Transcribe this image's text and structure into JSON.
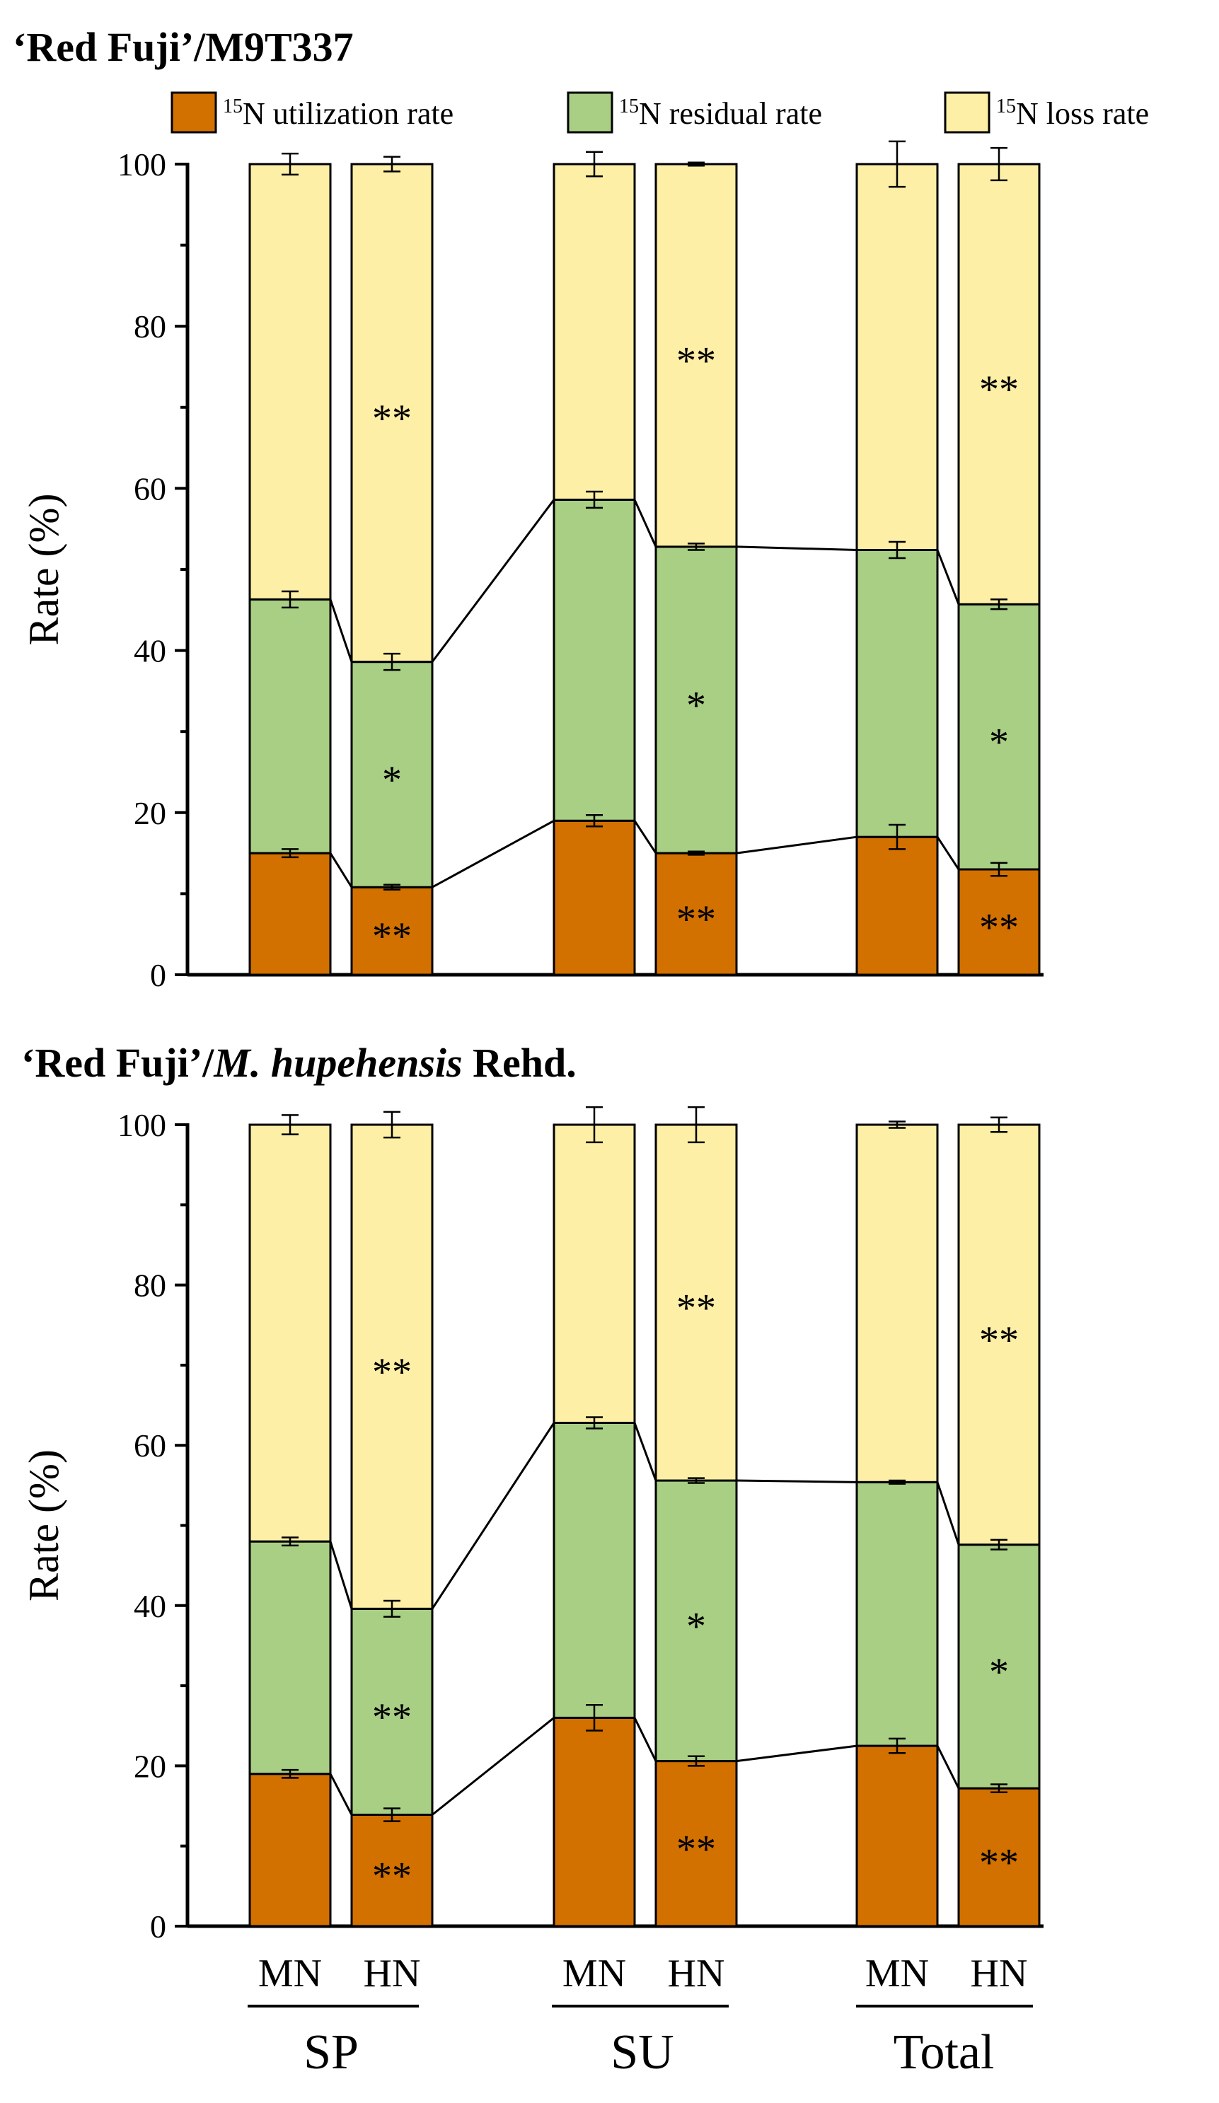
{
  "legend": [
    {
      "sup": "15",
      "label": "N utilization rate",
      "color": "#d27100"
    },
    {
      "sup": "15",
      "label": "N residual rate",
      "color": "#a9cf85"
    },
    {
      "sup": "15",
      "label": "N loss rate",
      "color": "#fdefa6"
    }
  ],
  "panels": [
    {
      "title": "‘Red Fuji’/M9T337"
    },
    {
      "title_part1": "‘Red Fuji’/",
      "title_part2": "M. hupehensis",
      "title_part3": " Rehd."
    }
  ],
  "x_axis": {
    "treatments": [
      "MN",
      "HN"
    ],
    "groups": [
      "SP",
      "SU",
      "Total"
    ]
  },
  "chart_data": [
    {
      "type": "bar",
      "stacked": true,
      "title": "‘Red Fuji’/M9T337",
      "ylabel": "Rate (%)",
      "ylim": [
        0,
        100
      ],
      "yticks": [
        0,
        20,
        40,
        60,
        80,
        100
      ],
      "categories": [
        "SP MN",
        "SP HN",
        "SU MN",
        "SU HN",
        "Total MN",
        "Total HN"
      ],
      "series": [
        {
          "name": "15N utilization rate",
          "color": "#d27100",
          "values": [
            15.0,
            10.8,
            19.0,
            15.0,
            17.0,
            13.0
          ],
          "errors": [
            0.5,
            0.3,
            0.7,
            0.2,
            1.5,
            0.8
          ],
          "significance": [
            "",
            "**",
            "",
            "**",
            "",
            "**"
          ]
        },
        {
          "name": "15N residual rate",
          "color": "#a9cf85",
          "values": [
            31.3,
            27.8,
            39.6,
            37.8,
            35.4,
            32.7
          ],
          "errors": [
            1.0,
            1.0,
            1.0,
            0.4,
            1.0,
            0.6
          ],
          "significance": [
            "",
            "*",
            "",
            "*",
            "",
            "*"
          ]
        },
        {
          "name": "15N loss rate",
          "color": "#fdefa6",
          "values": [
            53.7,
            61.4,
            41.4,
            47.2,
            47.6,
            54.3
          ],
          "errors": [
            1.3,
            0.9,
            1.5,
            0.2,
            2.8,
            2.0
          ],
          "significance": [
            "",
            "**",
            "",
            "**",
            "",
            "**"
          ]
        }
      ]
    },
    {
      "type": "bar",
      "stacked": true,
      "title": "‘Red Fuji’/M. hupehensis Rehd.",
      "ylabel": "Rate (%)",
      "ylim": [
        0,
        100
      ],
      "yticks": [
        0,
        20,
        40,
        60,
        80,
        100
      ],
      "categories": [
        "SP MN",
        "SP HN",
        "SU MN",
        "SU HN",
        "Total MN",
        "Total HN"
      ],
      "series": [
        {
          "name": "15N utilization rate",
          "color": "#d27100",
          "values": [
            19.0,
            13.9,
            26.0,
            20.6,
            22.5,
            17.2
          ],
          "errors": [
            0.5,
            0.8,
            1.6,
            0.6,
            0.9,
            0.5
          ],
          "significance": [
            "",
            "**",
            "",
            "**",
            "",
            "**"
          ]
        },
        {
          "name": "15N residual rate",
          "color": "#a9cf85",
          "values": [
            29.0,
            25.7,
            36.8,
            35.0,
            32.9,
            30.4
          ],
          "errors": [
            0.5,
            1.0,
            0.7,
            0.3,
            0.2,
            0.6
          ],
          "significance": [
            "",
            "**",
            "",
            "*",
            "",
            "*"
          ]
        },
        {
          "name": "15N loss rate",
          "color": "#fdefa6",
          "values": [
            52.0,
            60.4,
            37.2,
            44.4,
            44.6,
            52.4
          ],
          "errors": [
            1.2,
            1.6,
            2.2,
            2.2,
            0.4,
            0.9
          ],
          "significance": [
            "",
            "**",
            "",
            "**",
            "",
            "**"
          ]
        }
      ]
    }
  ]
}
